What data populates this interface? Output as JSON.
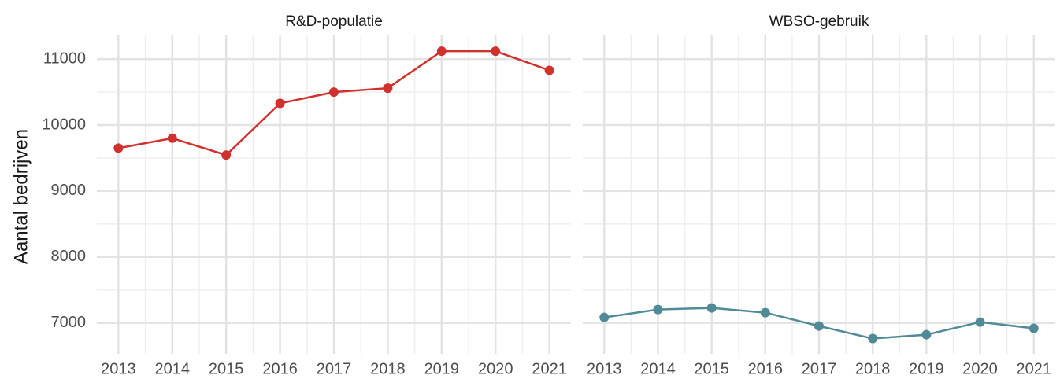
{
  "chart_data": [
    {
      "type": "line",
      "title": "R&D-populatie",
      "ylabel": "Aantal bedrijven",
      "color": "#d0312d",
      "x": [
        2013,
        2014,
        2015,
        2016,
        2017,
        2018,
        2019,
        2020,
        2021
      ],
      "values": [
        9650,
        9800,
        9545,
        10330,
        10500,
        10560,
        11120,
        11120,
        10830
      ],
      "xlim": [
        2012.6,
        2021.4
      ],
      "xticks": [
        2013,
        2014,
        2015,
        2016,
        2017,
        2018,
        2019,
        2020,
        2021
      ],
      "ylim": [
        6530,
        11360
      ],
      "yticks": [
        7000,
        8000,
        9000,
        10000,
        11000
      ],
      "grid": true
    },
    {
      "type": "line",
      "title": "WBSO-gebruik",
      "color": "#4f8a96",
      "x": [
        2013,
        2014,
        2015,
        2016,
        2017,
        2018,
        2019,
        2020,
        2021
      ],
      "values": [
        7083,
        7202,
        7226,
        7155,
        6952,
        6762,
        6821,
        7012,
        6917
      ],
      "xlim": [
        2012.6,
        2021.4
      ],
      "xticks": [
        2013,
        2014,
        2015,
        2016,
        2017,
        2018,
        2019,
        2020,
        2021
      ],
      "ylim": [
        6530,
        11360
      ],
      "yticks": [
        7000,
        8000,
        9000,
        10000,
        11000
      ],
      "grid": true
    }
  ]
}
